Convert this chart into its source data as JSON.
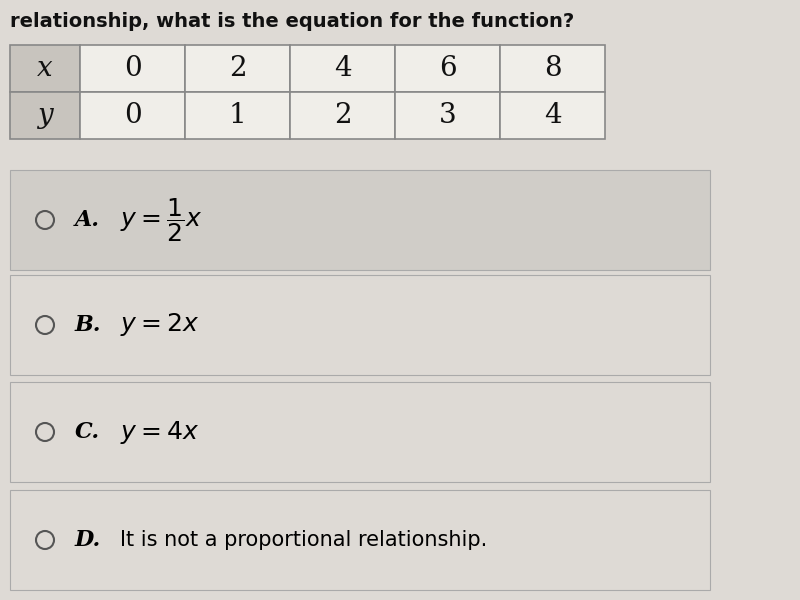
{
  "title_text": "relationship, what is the equation for the function?",
  "title_fontsize": 14,
  "bg_color": "#dedad5",
  "table": {
    "headers": [
      "x",
      "0",
      "2",
      "4",
      "6",
      "8"
    ],
    "row2": [
      "y",
      "0",
      "1",
      "2",
      "3",
      "4"
    ],
    "header_col_bg": "#c8c4be",
    "cell_bg": "#f0eee9",
    "border_color": "#888888"
  },
  "options": [
    {
      "label": "A.",
      "formula": "$y = \\dfrac{1}{2}x$",
      "highlighted": true,
      "plain": false
    },
    {
      "label": "B.",
      "formula": "$y = 2x$",
      "highlighted": false,
      "plain": false
    },
    {
      "label": "C.",
      "formula": "$y = 4x$",
      "highlighted": false,
      "plain": false
    },
    {
      "label": "D.",
      "formula": "It is not a proportional relationship.",
      "highlighted": false,
      "plain": true
    }
  ],
  "option_circle_color": "#555555",
  "option_label_color": "#000000",
  "option_formula_color": "#000000",
  "highlight_color": "#d0cdc8",
  "option_bg_color": "#dedad5",
  "separator_color": "#aaaaaa"
}
